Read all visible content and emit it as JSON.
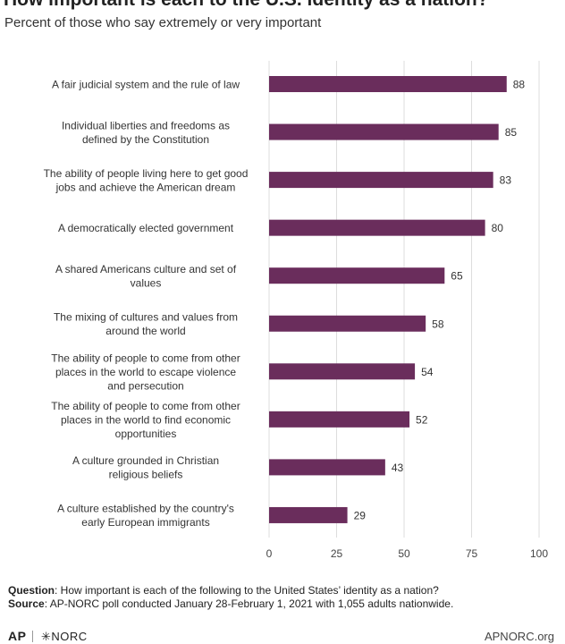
{
  "header": {
    "title": "How important is each to the U.S. identity as a nation?",
    "subtitle": "Percent of those who say extremely or very important"
  },
  "chart_data": {
    "type": "bar",
    "orientation": "horizontal",
    "categories": [
      [
        "A fair judicial system and the rule of law"
      ],
      [
        "Individual liberties and freedoms as",
        "defined by the Constitution"
      ],
      [
        "The ability of people living here to get good",
        "jobs and achieve the American dream"
      ],
      [
        "A democratically elected government"
      ],
      [
        "A shared Americans culture and set of",
        "values"
      ],
      [
        "The mixing of cultures and values from",
        "around the world"
      ],
      [
        "The ability of people to come from other",
        "places in the world to escape violence",
        "and persecution"
      ],
      [
        "The ability of people to come from other",
        "places in the world to find economic",
        "opportunities"
      ],
      [
        "A culture grounded in Christian",
        "religious beliefs"
      ],
      [
        "A culture established by the country's",
        "early European immigrants"
      ]
    ],
    "values": [
      88,
      85,
      83,
      80,
      65,
      58,
      54,
      52,
      43,
      29
    ],
    "xlim": [
      0,
      100
    ],
    "xticks": [
      0,
      25,
      50,
      75,
      100
    ],
    "bar_color": "#6a2d5c",
    "grid": true,
    "data_labels": true
  },
  "notes": {
    "question_label": "Question",
    "question_text": ": How important is each of the following to the United States’ identity as a nation?",
    "source_label": "Source",
    "source_text": ": AP-NORC poll conducted January 28-February 1, 2021 with 1,055 adults nationwide."
  },
  "footer": {
    "ap_logo": "AP",
    "norc_logo": "✳NORC",
    "site": "APNORC.org"
  }
}
